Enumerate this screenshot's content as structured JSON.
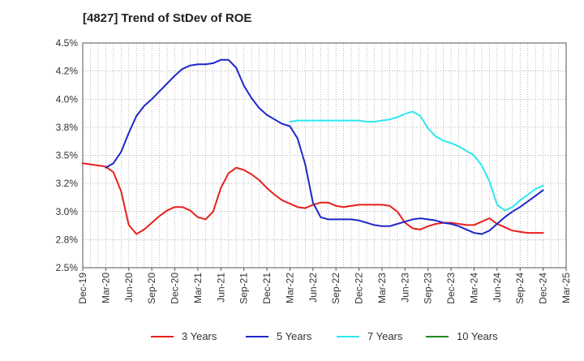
{
  "chart_data": {
    "type": "line",
    "title": "[4827]  Trend of StDev of ROE",
    "xlabel": "",
    "ylabel": "",
    "x_ticks": [
      "Dec-19",
      "Mar-20",
      "Jun-20",
      "Sep-20",
      "Dec-20",
      "Mar-21",
      "Jun-21",
      "Sep-21",
      "Dec-21",
      "Mar-22",
      "Jun-22",
      "Sep-22",
      "Dec-22",
      "Mar-23",
      "Jun-23",
      "Sep-23",
      "Dec-23",
      "Mar-24",
      "Jun-24",
      "Sep-24",
      "Dec-24",
      "Mar-25"
    ],
    "y_ticks": [
      "2.5%",
      "2.8%",
      "3.0%",
      "3.2%",
      "3.5%",
      "3.8%",
      "4.0%",
      "4.2%",
      "4.5%"
    ],
    "ylim": [
      2.5,
      4.5
    ],
    "y_unit": "%",
    "grid": true,
    "legend_position": "bottom",
    "series": [
      {
        "name": "3 Years",
        "color": "#e8201c",
        "values": [
          [
            "Dec-19",
            3.43
          ],
          [
            "Jan-20",
            3.42
          ],
          [
            "Feb-20",
            3.41
          ],
          [
            "Mar-20",
            3.4
          ],
          [
            "Apr-20",
            3.35
          ],
          [
            "May-20",
            3.18
          ],
          [
            "Jun-20",
            2.88
          ],
          [
            "Jul-20",
            2.8
          ],
          [
            "Aug-20",
            2.84
          ],
          [
            "Sep-20",
            2.9
          ],
          [
            "Oct-20",
            2.96
          ],
          [
            "Nov-20",
            3.01
          ],
          [
            "Dec-20",
            3.04
          ],
          [
            "Jan-21",
            3.04
          ],
          [
            "Feb-21",
            3.01
          ],
          [
            "Mar-21",
            2.95
          ],
          [
            "Apr-21",
            2.93
          ],
          [
            "May-21",
            3.0
          ],
          [
            "Jun-21",
            3.21
          ],
          [
            "Jul-21",
            3.34
          ],
          [
            "Aug-21",
            3.39
          ],
          [
            "Sep-21",
            3.37
          ],
          [
            "Oct-21",
            3.33
          ],
          [
            "Nov-21",
            3.28
          ],
          [
            "Dec-21",
            3.21
          ],
          [
            "Jan-22",
            3.15
          ],
          [
            "Feb-22",
            3.1
          ],
          [
            "Mar-22",
            3.07
          ],
          [
            "Apr-22",
            3.04
          ],
          [
            "May-22",
            3.03
          ],
          [
            "Jun-22",
            3.06
          ],
          [
            "Jul-22",
            3.08
          ],
          [
            "Aug-22",
            3.08
          ],
          [
            "Sep-22",
            3.05
          ],
          [
            "Oct-22",
            3.04
          ],
          [
            "Nov-22",
            3.05
          ],
          [
            "Dec-22",
            3.06
          ],
          [
            "Jan-23",
            3.06
          ],
          [
            "Feb-23",
            3.06
          ],
          [
            "Mar-23",
            3.06
          ],
          [
            "Apr-23",
            3.05
          ],
          [
            "May-23",
            3.0
          ],
          [
            "Jun-23",
            2.9
          ],
          [
            "Jul-23",
            2.85
          ],
          [
            "Aug-23",
            2.84
          ],
          [
            "Sep-23",
            2.87
          ],
          [
            "Oct-23",
            2.89
          ],
          [
            "Nov-23",
            2.9
          ],
          [
            "Dec-23",
            2.9
          ],
          [
            "Jan-24",
            2.89
          ],
          [
            "Feb-24",
            2.88
          ],
          [
            "Mar-24",
            2.88
          ],
          [
            "Apr-24",
            2.91
          ],
          [
            "May-24",
            2.94
          ],
          [
            "Jun-24",
            2.89
          ],
          [
            "Jul-24",
            2.86
          ],
          [
            "Aug-24",
            2.83
          ],
          [
            "Sep-24",
            2.82
          ],
          [
            "Oct-24",
            2.81
          ],
          [
            "Nov-24",
            2.81
          ],
          [
            "Dec-24",
            2.81
          ]
        ]
      },
      {
        "name": "5 Years",
        "color": "#1f27c9",
        "values": [
          [
            "Mar-20",
            3.39
          ],
          [
            "Apr-20",
            3.43
          ],
          [
            "May-20",
            3.53
          ],
          [
            "Jun-20",
            3.7
          ],
          [
            "Jul-20",
            3.85
          ],
          [
            "Aug-20",
            3.94
          ],
          [
            "Sep-20",
            4.0
          ],
          [
            "Oct-20",
            4.07
          ],
          [
            "Nov-20",
            4.14
          ],
          [
            "Dec-20",
            4.21
          ],
          [
            "Jan-21",
            4.27
          ],
          [
            "Feb-21",
            4.3
          ],
          [
            "Mar-21",
            4.31
          ],
          [
            "Apr-21",
            4.31
          ],
          [
            "May-21",
            4.32
          ],
          [
            "Jun-21",
            4.35
          ],
          [
            "Jul-21",
            4.35
          ],
          [
            "Aug-21",
            4.28
          ],
          [
            "Sep-21",
            4.12
          ],
          [
            "Oct-21",
            4.01
          ],
          [
            "Nov-21",
            3.92
          ],
          [
            "Dec-21",
            3.86
          ],
          [
            "Jan-22",
            3.82
          ],
          [
            "Feb-22",
            3.78
          ],
          [
            "Mar-22",
            3.76
          ],
          [
            "Apr-22",
            3.65
          ],
          [
            "May-22",
            3.42
          ],
          [
            "Jun-22",
            3.08
          ],
          [
            "Jul-22",
            2.95
          ],
          [
            "Aug-22",
            2.93
          ],
          [
            "Sep-22",
            2.93
          ],
          [
            "Oct-22",
            2.93
          ],
          [
            "Nov-22",
            2.93
          ],
          [
            "Dec-22",
            2.92
          ],
          [
            "Jan-23",
            2.9
          ],
          [
            "Feb-23",
            2.88
          ],
          [
            "Mar-23",
            2.87
          ],
          [
            "Apr-23",
            2.87
          ],
          [
            "May-23",
            2.89
          ],
          [
            "Jun-23",
            2.91
          ],
          [
            "Jul-23",
            2.93
          ],
          [
            "Aug-23",
            2.94
          ],
          [
            "Sep-23",
            2.93
          ],
          [
            "Oct-23",
            2.92
          ],
          [
            "Nov-23",
            2.9
          ],
          [
            "Dec-23",
            2.89
          ],
          [
            "Jan-24",
            2.87
          ],
          [
            "Feb-24",
            2.84
          ],
          [
            "Mar-24",
            2.81
          ],
          [
            "Apr-24",
            2.8
          ],
          [
            "May-24",
            2.83
          ],
          [
            "Jun-24",
            2.89
          ],
          [
            "Jul-24",
            2.95
          ],
          [
            "Aug-24",
            3.0
          ],
          [
            "Sep-24",
            3.04
          ],
          [
            "Oct-24",
            3.09
          ],
          [
            "Nov-24",
            3.14
          ],
          [
            "Dec-24",
            3.19
          ]
        ]
      },
      {
        "name": "7 Years",
        "color": "#2ee8ee",
        "values": [
          [
            "Mar-22",
            3.8
          ],
          [
            "Apr-22",
            3.81
          ],
          [
            "May-22",
            3.81
          ],
          [
            "Jun-22",
            3.81
          ],
          [
            "Jul-22",
            3.81
          ],
          [
            "Aug-22",
            3.81
          ],
          [
            "Sep-22",
            3.81
          ],
          [
            "Oct-22",
            3.81
          ],
          [
            "Nov-22",
            3.81
          ],
          [
            "Dec-22",
            3.81
          ],
          [
            "Jan-23",
            3.8
          ],
          [
            "Feb-23",
            3.8
          ],
          [
            "Mar-23",
            3.81
          ],
          [
            "Apr-23",
            3.82
          ],
          [
            "May-23",
            3.84
          ],
          [
            "Jun-23",
            3.87
          ],
          [
            "Jul-23",
            3.89
          ],
          [
            "Aug-23",
            3.85
          ],
          [
            "Sep-23",
            3.74
          ],
          [
            "Oct-23",
            3.67
          ],
          [
            "Nov-23",
            3.63
          ],
          [
            "Dec-23",
            3.61
          ],
          [
            "Jan-24",
            3.58
          ],
          [
            "Feb-24",
            3.54
          ],
          [
            "Mar-24",
            3.5
          ],
          [
            "Apr-24",
            3.41
          ],
          [
            "May-24",
            3.27
          ],
          [
            "Jun-24",
            3.06
          ],
          [
            "Jul-24",
            3.01
          ],
          [
            "Aug-24",
            3.04
          ],
          [
            "Sep-24",
            3.1
          ],
          [
            "Oct-24",
            3.15
          ],
          [
            "Nov-24",
            3.2
          ],
          [
            "Dec-24",
            3.23
          ]
        ]
      },
      {
        "name": "10 Years",
        "color": "#1e8a1e",
        "values": []
      }
    ]
  }
}
